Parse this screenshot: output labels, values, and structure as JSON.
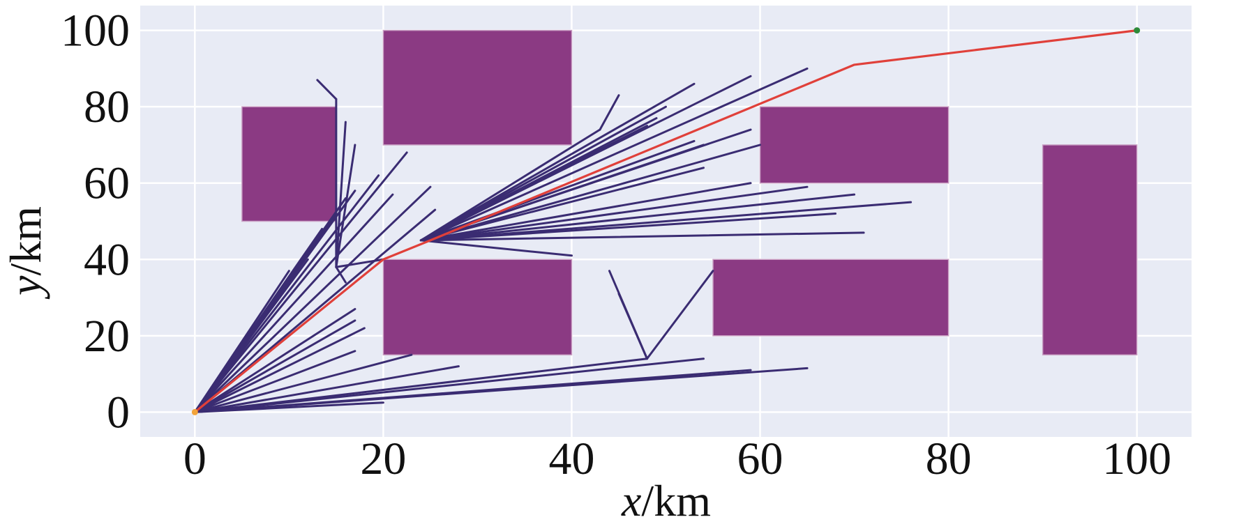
{
  "chart_data": {
    "type": "line",
    "title": "",
    "xlabel_var": "x",
    "xlabel_unit": "/km",
    "ylabel_var": "y",
    "ylabel_unit": "/km",
    "xlim": [
      -5.8,
      105.8
    ],
    "ylim": [
      -6.5,
      106.5
    ],
    "xticks": [
      0,
      20,
      40,
      60,
      80,
      100
    ],
    "yticks": [
      0,
      20,
      40,
      60,
      80,
      100
    ],
    "grid": true,
    "colors": {
      "background": "#e8ebf5",
      "grid": "#ffffff",
      "obstacle": "#8b3a83",
      "tree": "#3a2c72",
      "path": "#e0403a",
      "start": "#f2a33a",
      "goal": "#2e8b3a"
    },
    "obstacles": [
      {
        "x0": 5,
        "y0": 50,
        "x1": 15,
        "y1": 80
      },
      {
        "x0": 20,
        "y0": 70,
        "x1": 40,
        "y1": 100
      },
      {
        "x0": 20,
        "y0": 15,
        "x1": 40,
        "y1": 40
      },
      {
        "x0": 60,
        "y0": 60,
        "x1": 80,
        "y1": 80
      },
      {
        "x0": 55,
        "y0": 20,
        "x1": 80,
        "y1": 40
      },
      {
        "x0": 90,
        "y0": 15,
        "x1": 100,
        "y1": 70
      }
    ],
    "start": [
      0,
      0
    ],
    "goal": [
      100,
      100
    ],
    "path": [
      [
        0,
        0
      ],
      [
        20,
        40
      ],
      [
        25,
        45
      ],
      [
        70,
        91
      ],
      [
        100,
        100
      ]
    ],
    "tree_nodes": [
      [
        20,
        40
      ],
      [
        24,
        45
      ],
      [
        48,
        14
      ],
      [
        15,
        38
      ],
      [
        15,
        82
      ]
    ],
    "tree_edges": [
      [
        0,
        0,
        13.5,
        48
      ],
      [
        0,
        0,
        15,
        52
      ],
      [
        0,
        0,
        16,
        56
      ],
      [
        0,
        0,
        17,
        58
      ],
      [
        0,
        0,
        19.5,
        62
      ],
      [
        0,
        0,
        22.5,
        68
      ],
      [
        0,
        0,
        21,
        57
      ],
      [
        0,
        0,
        25,
        59
      ],
      [
        0,
        0,
        25.5,
        53
      ],
      [
        0,
        0,
        12,
        40
      ],
      [
        0,
        0,
        10,
        37
      ],
      [
        0,
        0,
        17,
        27
      ],
      [
        0,
        0,
        18,
        22
      ],
      [
        0,
        0,
        17,
        24
      ],
      [
        0,
        0,
        17,
        16
      ],
      [
        0,
        0,
        23,
        15
      ],
      [
        0,
        0,
        28,
        12
      ],
      [
        0,
        0,
        20,
        2.5
      ],
      [
        0,
        0,
        48,
        14
      ],
      [
        0,
        0,
        54,
        14
      ],
      [
        0,
        0,
        59,
        11
      ],
      [
        0,
        0,
        65,
        11.5
      ],
      [
        24,
        45,
        53,
        86
      ],
      [
        24,
        45,
        59,
        88
      ],
      [
        24,
        45,
        65,
        90
      ],
      [
        24,
        45,
        50,
        80
      ],
      [
        24,
        45,
        48,
        75
      ],
      [
        24,
        45,
        49,
        77
      ],
      [
        24,
        45,
        53,
        71
      ],
      [
        24,
        45,
        54,
        70
      ],
      [
        24,
        45,
        59,
        74
      ],
      [
        24,
        45,
        60,
        70
      ],
      [
        24,
        45,
        54,
        64
      ],
      [
        24,
        45,
        59,
        60
      ],
      [
        24,
        45,
        65,
        59
      ],
      [
        24,
        45,
        70,
        57
      ],
      [
        24,
        45,
        76,
        55
      ],
      [
        24,
        45,
        68,
        52
      ],
      [
        24,
        45,
        71,
        47
      ],
      [
        24,
        45,
        40,
        41
      ],
      [
        24,
        45,
        43,
        74
      ],
      [
        43,
        74,
        45,
        83
      ],
      [
        48,
        14,
        44,
        37
      ],
      [
        48,
        14,
        45,
        31
      ],
      [
        48,
        14,
        55,
        37
      ],
      [
        15,
        38,
        16,
        76
      ],
      [
        15,
        38,
        17,
        70
      ],
      [
        15,
        38,
        16,
        34
      ],
      [
        15,
        38,
        20,
        40
      ],
      [
        15,
        38,
        15,
        82
      ],
      [
        15,
        82,
        13,
        87
      ]
    ]
  }
}
